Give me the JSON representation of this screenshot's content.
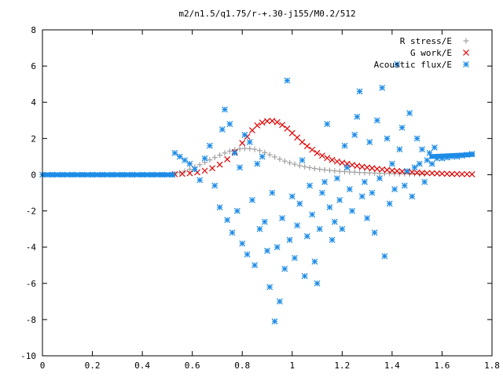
{
  "chart_data": {
    "type": "scatter",
    "title": "m2/n1.5/q1.75/r-+.30-j155/M0.2/512",
    "xlabel": "",
    "ylabel": "",
    "xlim": [
      0,
      1.8
    ],
    "ylim": [
      -10,
      8
    ],
    "x_ticks": [
      "0",
      "0.2",
      "0.4",
      "0.6",
      "0.8",
      "1",
      "1.2",
      "1.4",
      "1.6",
      "1.8"
    ],
    "y_ticks": [
      "8",
      "6",
      "4",
      "2",
      "0",
      "-2",
      "-4",
      "-6",
      "-8",
      "-10"
    ],
    "grid": false,
    "legend_position": "top-right",
    "series": [
      {
        "name": "R stress/E",
        "marker": "plus",
        "color": "#a0a0a0",
        "x": [
          0.53,
          0.55,
          0.57,
          0.59,
          0.61,
          0.63,
          0.65,
          0.67,
          0.69,
          0.71,
          0.73,
          0.75,
          0.77,
          0.79,
          0.81,
          0.83,
          0.85,
          0.87,
          0.89,
          0.91,
          0.93,
          0.95,
          0.97,
          0.99,
          1.01,
          1.03,
          1.05,
          1.07,
          1.09,
          1.11,
          1.13,
          1.15,
          1.17,
          1.19,
          1.21,
          1.23,
          1.25,
          1.27,
          1.29,
          1.31,
          1.33,
          1.35,
          1.37,
          1.39,
          1.41,
          1.43,
          1.45,
          1.47,
          1.49,
          1.51,
          1.53
        ],
        "y": [
          0.05,
          0.12,
          0.2,
          0.3,
          0.42,
          0.55,
          0.68,
          0.82,
          0.95,
          1.08,
          1.2,
          1.3,
          1.38,
          1.43,
          1.45,
          1.44,
          1.4,
          1.33,
          1.22,
          1.1,
          0.98,
          0.86,
          0.75,
          0.66,
          0.58,
          0.5,
          0.44,
          0.39,
          0.34,
          0.3,
          0.27,
          0.24,
          0.21,
          0.19,
          0.17,
          0.15,
          0.14,
          0.12,
          0.11,
          0.1,
          0.09,
          0.08,
          0.07,
          0.07,
          0.06,
          0.05,
          0.05,
          0.04,
          0.04,
          0.03,
          0.03
        ]
      },
      {
        "name": "G work/E",
        "marker": "cross",
        "color": "#e00000",
        "x": [
          0.53,
          0.56,
          0.59,
          0.62,
          0.65,
          0.68,
          0.71,
          0.74,
          0.77,
          0.8,
          0.82,
          0.84,
          0.86,
          0.88,
          0.9,
          0.92,
          0.94,
          0.96,
          0.98,
          1.0,
          1.02,
          1.04,
          1.06,
          1.08,
          1.1,
          1.12,
          1.14,
          1.16,
          1.18,
          1.2,
          1.22,
          1.24,
          1.26,
          1.28,
          1.3,
          1.32,
          1.34,
          1.36,
          1.38,
          1.4,
          1.42,
          1.44,
          1.46,
          1.48,
          1.5,
          1.52,
          1.54,
          1.56,
          1.58,
          1.6,
          1.62,
          1.64,
          1.66,
          1.68,
          1.7,
          1.72
        ],
        "y": [
          0.03,
          0.05,
          0.08,
          0.13,
          0.22,
          0.36,
          0.56,
          0.85,
          1.25,
          1.75,
          2.1,
          2.45,
          2.72,
          2.88,
          2.96,
          2.97,
          2.9,
          2.75,
          2.55,
          2.3,
          2.05,
          1.8,
          1.58,
          1.38,
          1.2,
          1.05,
          0.92,
          0.82,
          0.73,
          0.66,
          0.6,
          0.54,
          0.49,
          0.44,
          0.4,
          0.36,
          0.32,
          0.29,
          0.26,
          0.23,
          0.2,
          0.18,
          0.16,
          0.14,
          0.12,
          0.1,
          0.09,
          0.08,
          0.07,
          0.06,
          0.05,
          0.04,
          0.04,
          0.03,
          0.03,
          0.02
        ]
      },
      {
        "name": "Acoustic flux/E",
        "marker": "star",
        "color": "#1e8ce6",
        "x": [
          0.0,
          0.04,
          0.08,
          0.12,
          0.16,
          0.2,
          0.24,
          0.28,
          0.32,
          0.36,
          0.4,
          0.44,
          0.48,
          0.52,
          0.53,
          0.55,
          0.57,
          0.59,
          0.61,
          0.63,
          0.65,
          0.67,
          0.69,
          0.71,
          0.72,
          0.73,
          0.74,
          0.75,
          0.76,
          0.77,
          0.78,
          0.79,
          0.8,
          0.81,
          0.82,
          0.83,
          0.84,
          0.85,
          0.86,
          0.87,
          0.88,
          0.89,
          0.9,
          0.91,
          0.92,
          0.93,
          0.94,
          0.95,
          0.96,
          0.97,
          0.98,
          0.99,
          1.0,
          1.01,
          1.02,
          1.03,
          1.04,
          1.05,
          1.06,
          1.07,
          1.08,
          1.09,
          1.1,
          1.11,
          1.12,
          1.13,
          1.14,
          1.15,
          1.16,
          1.17,
          1.18,
          1.19,
          1.2,
          1.21,
          1.22,
          1.23,
          1.24,
          1.25,
          1.26,
          1.27,
          1.28,
          1.29,
          1.3,
          1.31,
          1.32,
          1.33,
          1.34,
          1.35,
          1.36,
          1.37,
          1.38,
          1.39,
          1.4,
          1.41,
          1.42,
          1.43,
          1.44,
          1.45,
          1.46,
          1.47,
          1.48,
          1.49,
          1.5,
          1.51,
          1.52,
          1.53,
          1.54,
          1.55,
          1.56,
          1.57,
          1.58,
          1.6,
          1.62,
          1.64,
          1.66,
          1.68,
          1.7,
          1.72
        ],
        "y": [
          0,
          0,
          0,
          0,
          0,
          0,
          0,
          0,
          0,
          0,
          0,
          0,
          0,
          0,
          1.2,
          1.0,
          0.8,
          0.6,
          0.3,
          -0.3,
          0.9,
          1.6,
          -0.6,
          -1.8,
          2.5,
          3.6,
          -2.5,
          2.8,
          -3.2,
          1.2,
          -2.0,
          0.4,
          -3.8,
          2.2,
          -4.4,
          1.8,
          -1.4,
          -5.0,
          0.6,
          -3.0,
          1.0,
          -2.6,
          -4.2,
          -6.2,
          -1.0,
          -8.1,
          -4.0,
          -7.0,
          -2.4,
          -5.2,
          5.2,
          -3.6,
          -1.2,
          -4.6,
          -2.8,
          -1.6,
          0.8,
          -5.6,
          -3.4,
          -0.6,
          -2.2,
          -4.8,
          -6.0,
          -3.0,
          -1.0,
          -0.4,
          2.8,
          -1.8,
          -3.6,
          -2.6,
          -0.2,
          -1.4,
          -3.0,
          1.6,
          0.4,
          -0.8,
          -2.0,
          2.2,
          3.2,
          4.6,
          -1.2,
          -0.4,
          -2.4,
          1.8,
          -1.0,
          -3.2,
          3.0,
          -0.2,
          4.8,
          -4.5,
          2.0,
          -1.6,
          0.6,
          -0.8,
          6.1,
          1.4,
          2.6,
          -0.6,
          0.2,
          3.4,
          -1.2,
          0.4,
          2.0,
          0.6,
          1.4,
          -0.4,
          0.8,
          1.2,
          0.6,
          1.5,
          0.9,
          0.9,
          0.95,
          1.0,
          1.0,
          1.05,
          1.1,
          1.15
        ]
      }
    ]
  }
}
